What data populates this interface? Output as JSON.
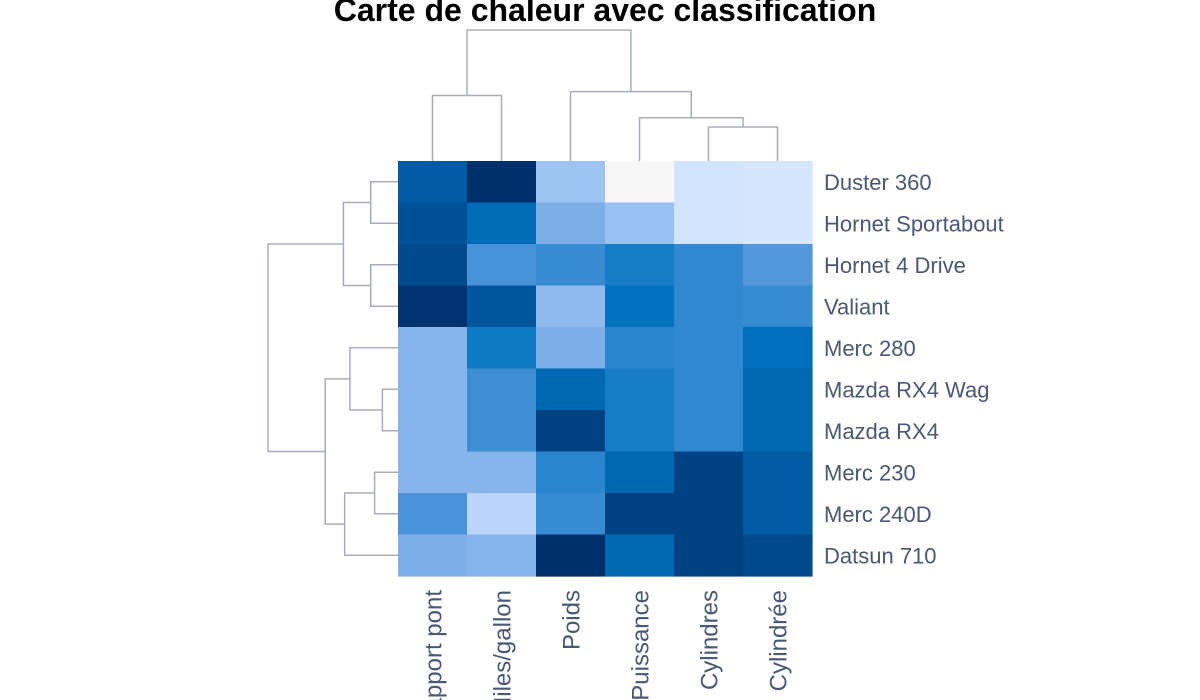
{
  "chart_data": {
    "type": "heatmap",
    "title": "Carte de chaleur avec classification",
    "rows": [
      "Duster 360",
      "Hornet Sportabout",
      "Hornet 4 Drive",
      "Valiant",
      "Merc 280",
      "Mazda RX4 Wag",
      "Mazda RX4",
      "Merc 230",
      "Merc 240D",
      "Datsun 710"
    ],
    "columns": [
      "Rapport pont",
      "Miles/gallon",
      "Poids",
      "Puissance",
      "Cylindres",
      "Cylindrée"
    ],
    "values": [
      [
        0.78,
        0.98,
        0.25,
        0.0,
        0.12,
        0.11
      ],
      [
        0.82,
        0.7,
        0.32,
        0.26,
        0.12,
        0.11
      ],
      [
        0.85,
        0.45,
        0.5,
        0.6,
        0.52,
        0.42
      ],
      [
        0.96,
        0.8,
        0.28,
        0.66,
        0.52,
        0.5
      ],
      [
        0.3,
        0.62,
        0.32,
        0.54,
        0.52,
        0.68
      ],
      [
        0.3,
        0.48,
        0.72,
        0.6,
        0.52,
        0.72
      ],
      [
        0.3,
        0.48,
        0.88,
        0.6,
        0.52,
        0.72
      ],
      [
        0.3,
        0.3,
        0.54,
        0.72,
        0.88,
        0.78
      ],
      [
        0.44,
        0.18,
        0.5,
        0.88,
        0.88,
        0.78
      ],
      [
        0.32,
        0.3,
        0.98,
        0.72,
        0.88,
        0.85
      ]
    ],
    "colormap": [
      "#f7f7f7",
      "#d6e6fb",
      "#a9cbf7",
      "#78aae6",
      "#4a93d8",
      "#2483cc",
      "#0071bd",
      "#005ca3",
      "#003f80",
      "#002d66"
    ],
    "row_dendrogram": [
      [
        [
          0.5,
          1.5
        ],
        [
          0.21,
          0.21
        ],
        "A"
      ],
      [
        [
          2.5,
          3.5
        ],
        [
          0.21,
          0.21
        ],
        "B"
      ],
      [
        "A",
        "B",
        [
          0.42,
          0.42
        ],
        "C"
      ],
      [
        [
          5.5,
          6.5
        ],
        [
          0.12,
          0.12
        ],
        "D"
      ],
      [
        [
          4.5,
          "D"
        ],
        [
          0.37,
          0.37
        ],
        "E"
      ],
      [
        [
          7.5,
          8.5
        ],
        [
          0.18,
          0.18
        ],
        "F"
      ],
      [
        [
          9.5,
          "F"
        ],
        [
          0.41,
          0.41
        ],
        "G"
      ],
      [
        "E",
        "G",
        [
          0.56,
          0.56
        ],
        "H"
      ],
      [
        "C",
        "H",
        [
          1.0,
          1.0
        ],
        "I"
      ]
    ],
    "col_dendrogram": [
      [
        [
          0.5,
          1.5
        ],
        [
          0.5,
          0.5
        ],
        "a"
      ],
      [
        [
          4.5,
          5.5
        ],
        [
          0.26,
          0.26
        ],
        "b"
      ],
      [
        [
          3.5,
          "b"
        ],
        [
          0.33,
          0.33
        ],
        "c"
      ],
      [
        [
          2.5,
          "c"
        ],
        [
          0.53,
          0.53
        ],
        "d"
      ],
      [
        "a",
        "d",
        [
          1.0,
          1.0
        ],
        "e"
      ]
    ]
  }
}
